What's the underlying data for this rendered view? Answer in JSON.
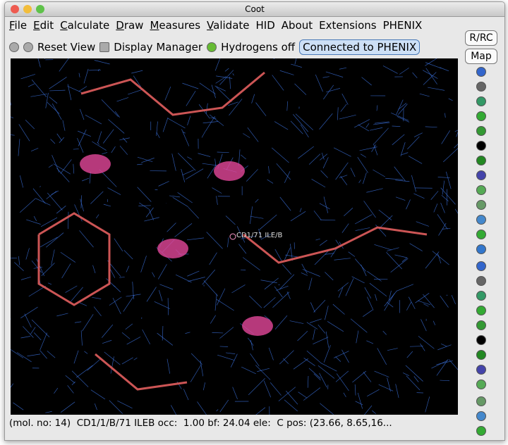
{
  "window": {
    "title": "Coot"
  },
  "menu": [
    "File",
    "Edit",
    "Calculate",
    "Draw",
    "Measures",
    "Validate",
    "HID",
    "About",
    "Extensions",
    "PHENIX"
  ],
  "toolbar": {
    "reset_view": "Reset View",
    "display_manager": "Display Manager",
    "hydrogens": "Hydrogens off",
    "phenix_status": "Connected to PHENIX"
  },
  "side_buttons": [
    "R/RC",
    "Map"
  ],
  "viewport": {
    "atom_label": "CD1/71 ILE/B"
  },
  "status_bar": "(mol. no: 14)  CD1/1/B/71 ILEB occ:  1.00 bf: 24.04 ele:  C pos: (23.66, 8.65,16..."
}
